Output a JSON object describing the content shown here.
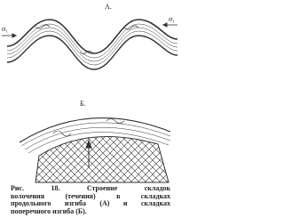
{
  "figure": {
    "label_a": "А.",
    "label_b": "Б.",
    "stress_left": "σ₁",
    "stress_right": "σ₁"
  },
  "caption": {
    "lines": [
      "Рис. 18. Строение складок",
      "волочения (течения) в складках",
      "продольного изгиба (А) и складках",
      "поперечного изгиба (Б)."
    ]
  }
}
